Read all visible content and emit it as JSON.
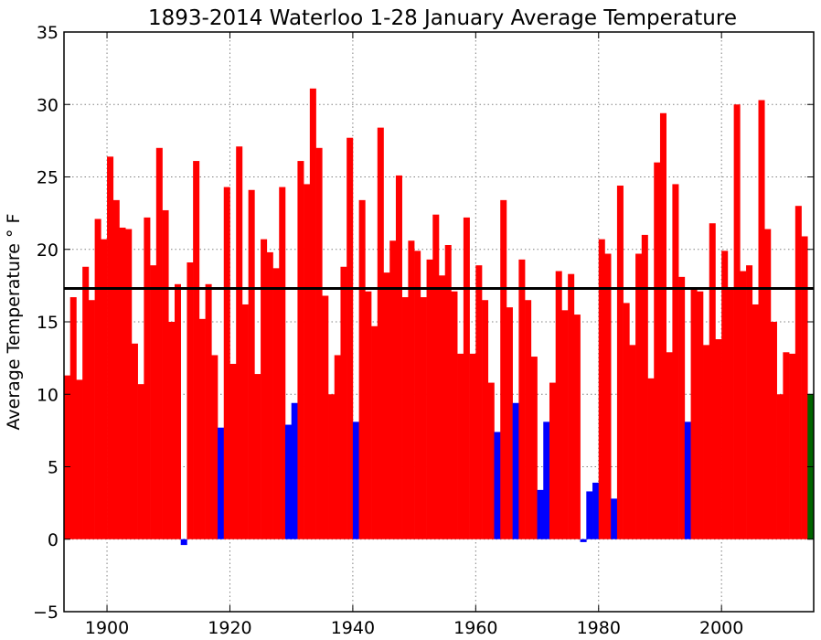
{
  "chart_data": {
    "type": "bar",
    "title": "1893-2014 Waterloo 1-28 January Average Temperature",
    "xlabel": "",
    "ylabel": "Average Temperature ° F",
    "xlim": [
      1893,
      2015
    ],
    "ylim": [
      -5,
      35
    ],
    "xticks": [
      "1900",
      "1920",
      "1940",
      "1960",
      "1980",
      "2000"
    ],
    "yticks": [
      "−5",
      "0",
      "5",
      "10",
      "15",
      "20",
      "25",
      "30",
      "35"
    ],
    "grid": true,
    "reference_line": 17.3,
    "colors": {
      "normal": "#ff0000",
      "cold": "#0000ff",
      "current": "#006400",
      "reference_line": "#000000",
      "grid": "#808080"
    },
    "x": [
      1893,
      1894,
      1895,
      1896,
      1897,
      1898,
      1899,
      1900,
      1901,
      1902,
      1903,
      1904,
      1905,
      1906,
      1907,
      1908,
      1909,
      1910,
      1911,
      1912,
      1913,
      1914,
      1915,
      1916,
      1917,
      1918,
      1919,
      1920,
      1921,
      1922,
      1923,
      1924,
      1925,
      1926,
      1927,
      1928,
      1929,
      1930,
      1931,
      1932,
      1933,
      1934,
      1935,
      1936,
      1937,
      1938,
      1939,
      1940,
      1941,
      1942,
      1943,
      1944,
      1945,
      1946,
      1947,
      1948,
      1949,
      1950,
      1951,
      1952,
      1953,
      1954,
      1955,
      1956,
      1957,
      1958,
      1959,
      1960,
      1961,
      1962,
      1963,
      1964,
      1965,
      1966,
      1967,
      1968,
      1969,
      1970,
      1971,
      1972,
      1973,
      1974,
      1975,
      1976,
      1977,
      1978,
      1979,
      1980,
      1981,
      1982,
      1983,
      1984,
      1985,
      1986,
      1987,
      1988,
      1989,
      1990,
      1991,
      1992,
      1993,
      1994,
      1995,
      1996,
      1997,
      1998,
      1999,
      2000,
      2001,
      2002,
      2003,
      2004,
      2005,
      2006,
      2007,
      2008,
      2009,
      2010,
      2011,
      2012,
      2013,
      2014
    ],
    "values": [
      11.3,
      16.7,
      11.0,
      18.8,
      16.5,
      22.1,
      20.7,
      26.4,
      23.4,
      21.5,
      21.4,
      13.5,
      10.7,
      22.2,
      18.9,
      27.0,
      22.7,
      15.0,
      17.6,
      -0.4,
      19.1,
      26.1,
      15.2,
      17.6,
      12.7,
      7.7,
      24.3,
      12.1,
      27.1,
      16.2,
      24.1,
      11.4,
      20.7,
      19.8,
      18.7,
      24.3,
      7.9,
      9.4,
      26.1,
      24.5,
      31.1,
      27.0,
      16.8,
      10.0,
      12.7,
      18.8,
      27.7,
      8.1,
      23.4,
      17.1,
      14.7,
      28.4,
      18.4,
      20.6,
      25.1,
      16.7,
      20.6,
      19.9,
      16.7,
      19.3,
      22.4,
      18.2,
      20.3,
      17.1,
      12.8,
      22.2,
      12.8,
      18.9,
      16.5,
      10.8,
      7.4,
      23.4,
      16.0,
      9.4,
      19.3,
      16.5,
      12.6,
      3.4,
      8.1,
      10.8,
      18.5,
      15.8,
      18.3,
      15.5,
      -0.2,
      3.3,
      3.9,
      20.7,
      19.7,
      2.8,
      24.4,
      16.3,
      13.4,
      19.7,
      21.0,
      11.1,
      26.0,
      29.4,
      12.9,
      24.5,
      18.1,
      8.1,
      17.3,
      17.1,
      13.4,
      21.8,
      13.8,
      19.9,
      17.3,
      30.0,
      18.5,
      18.9,
      16.2,
      30.3,
      21.4,
      15.0,
      10.0,
      12.9,
      12.8,
      23.0,
      20.9,
      10.0
    ]
  }
}
